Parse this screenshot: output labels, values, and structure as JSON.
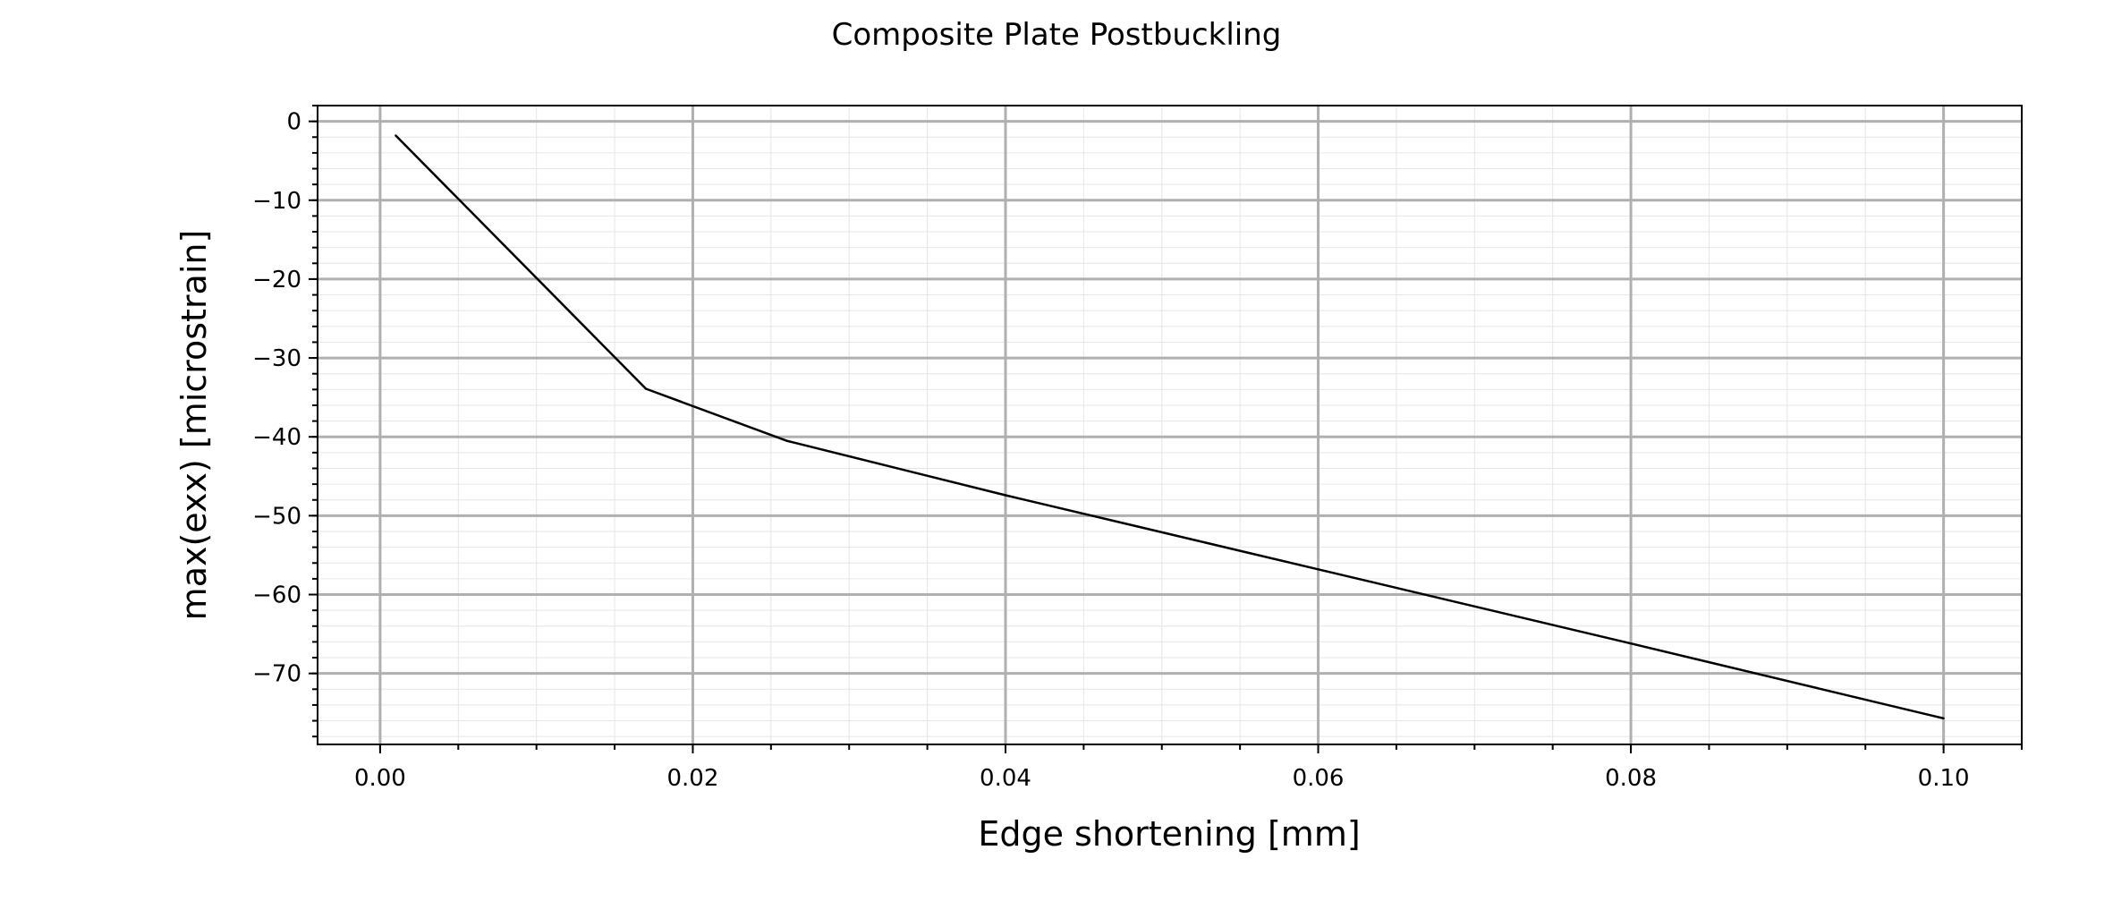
{
  "chart_data": {
    "type": "line",
    "title": "Composite Plate Postbuckling",
    "xlabel": "Edge shortening [mm]",
    "ylabel": "max(exx) [microstrain]",
    "xlim": [
      -0.004,
      0.105
    ],
    "ylim": [
      -79.0,
      2.0
    ],
    "x_ticks": [
      0.0,
      0.02,
      0.04,
      0.06,
      0.08,
      0.1
    ],
    "x_tick_labels": [
      "0.00",
      "0.02",
      "0.04",
      "0.06",
      "0.08",
      "0.10"
    ],
    "y_ticks": [
      0,
      -10,
      -20,
      -30,
      -40,
      -50,
      -60,
      -70
    ],
    "y_tick_labels": [
      "0",
      "−10",
      "−20",
      "−30",
      "−40",
      "−50",
      "−60",
      "−70"
    ],
    "grid": true,
    "minor_grid": true,
    "legend": false,
    "series": [
      {
        "color": "#000000",
        "x": [
          0.001,
          0.017,
          0.026,
          0.04,
          0.06,
          0.08,
          0.1
        ],
        "y": [
          -1.8,
          -33.9,
          -40.5,
          -47.4,
          -56.8,
          -66.2,
          -75.7
        ]
      }
    ]
  }
}
